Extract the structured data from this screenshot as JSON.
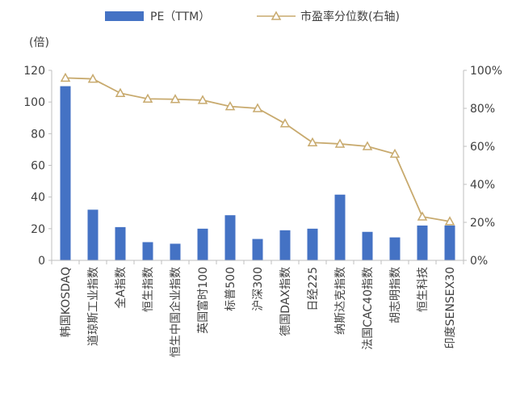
{
  "chart_data": {
    "type": "bar",
    "title": "",
    "categories": [
      "韩国KOSDAQ",
      "道琼斯工业指数",
      "全A指数",
      "恒生指数",
      "恒生中国企业指数",
      "英国富时100",
      "标普500",
      "沪深300",
      "德国DAX指数",
      "日经225",
      "纳斯达克指数",
      "法国CAC40指数",
      "胡志明指数",
      "恒生科技",
      "印度SENSEX30"
    ],
    "series": [
      {
        "name": "PE（TTM）",
        "type": "bar",
        "axis": "left",
        "color": "#4472C4",
        "values": [
          110,
          32,
          21,
          11.5,
          10.5,
          20,
          28.5,
          13.5,
          19,
          20,
          41.5,
          18,
          14.5,
          22,
          22
        ]
      },
      {
        "name": "市盈率分位数(右轴)",
        "type": "line",
        "axis": "right",
        "color": "#C8AA6E",
        "marker": "triangle-open",
        "values": [
          0.96,
          0.955,
          0.88,
          0.85,
          0.848,
          0.843,
          0.81,
          0.8,
          0.72,
          0.62,
          0.613,
          0.6,
          0.56,
          0.23,
          0.205
        ]
      }
    ],
    "ylabel": "(倍)",
    "ylim": [
      0,
      120
    ],
    "yticks": [
      "0",
      "20",
      "40",
      "60",
      "80",
      "100",
      "120"
    ],
    "y2lim": [
      0,
      1
    ],
    "y2ticks": [
      "0%",
      "20%",
      "40%",
      "60%",
      "80%",
      "100%"
    ],
    "legend_position": "top",
    "grid": false
  }
}
